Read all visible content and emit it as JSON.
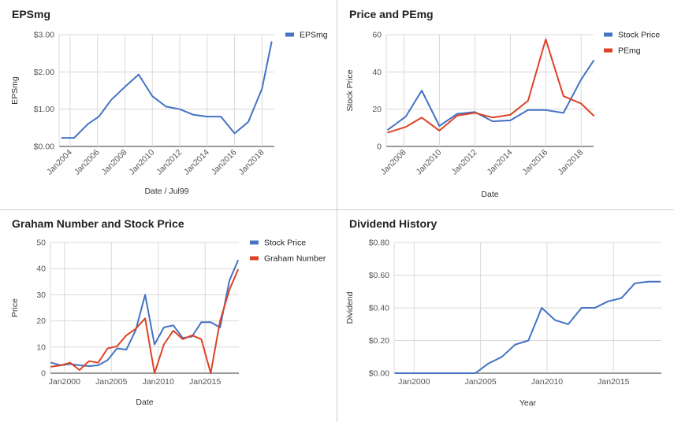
{
  "colors": {
    "blue": "#4472c4",
    "red": "#dc4325"
  },
  "chart_data": [
    {
      "type": "line",
      "title": "EPSmg",
      "xlabel": "Date / Jul99",
      "ylabel": "EPSmg",
      "ylim": [
        0,
        3
      ],
      "yticks": [
        {
          "value": 0,
          "label": "$0.00"
        },
        {
          "value": 1,
          "label": "$1.00"
        },
        {
          "value": 2,
          "label": "$2.00"
        },
        {
          "value": 3,
          "label": "$3.00"
        }
      ],
      "xlim": [
        2003.2,
        2018.9
      ],
      "xticks": [
        {
          "value": 2004,
          "label": "Jan2004"
        },
        {
          "value": 2006,
          "label": "Jan2006"
        },
        {
          "value": 2008,
          "label": "Jan2008"
        },
        {
          "value": 2010,
          "label": "Jan2010"
        },
        {
          "value": 2012,
          "label": "Jan2012"
        },
        {
          "value": 2014,
          "label": "Jan2014"
        },
        {
          "value": 2016,
          "label": "Jan2016"
        },
        {
          "value": 2018,
          "label": "Jan2018"
        }
      ],
      "rotate_xticks": true,
      "legend": "right",
      "series": [
        {
          "name": "EPSmg",
          "color": "#4472c4",
          "x": [
            2003.4,
            2004.3,
            2005.3,
            2006.1,
            2007.0,
            2008.0,
            2009.0,
            2010.0,
            2011.0,
            2012.0,
            2013.0,
            2014.0,
            2015.0,
            2016.0,
            2017.0,
            2018.0,
            2018.7
          ],
          "y": [
            0.23,
            0.23,
            0.6,
            0.8,
            1.25,
            1.6,
            1.93,
            1.35,
            1.07,
            1.0,
            0.85,
            0.8,
            0.8,
            0.35,
            0.66,
            1.55,
            2.8
          ]
        }
      ]
    },
    {
      "type": "line",
      "title": "Price and PEmg",
      "xlabel": "Date",
      "ylabel": "Stock Price",
      "ylim": [
        0,
        60
      ],
      "yticks": [
        {
          "value": 0,
          "label": "0"
        },
        {
          "value": 20,
          "label": "20"
        },
        {
          "value": 40,
          "label": "40"
        },
        {
          "value": 60,
          "label": "60"
        }
      ],
      "xlim": [
        2007.0,
        2018.7
      ],
      "xticks": [
        {
          "value": 2008,
          "label": "Jan2008"
        },
        {
          "value": 2010,
          "label": "Jan2010"
        },
        {
          "value": 2012,
          "label": "Jan2012"
        },
        {
          "value": 2014,
          "label": "Jan2014"
        },
        {
          "value": 2016,
          "label": "Jan2016"
        },
        {
          "value": 2018,
          "label": "Jan2018"
        }
      ],
      "rotate_xticks": true,
      "legend": "right",
      "series": [
        {
          "name": "Stock Price",
          "color": "#4472c4",
          "x": [
            2007.1,
            2008.1,
            2009.0,
            2010.0,
            2011.0,
            2012.0,
            2013.0,
            2014.0,
            2015.0,
            2016.0,
            2017.0,
            2018.0,
            2018.7
          ],
          "y": [
            9,
            16,
            30,
            11,
            17.5,
            18.5,
            13.5,
            14,
            19.5,
            19.5,
            18,
            36,
            46
          ]
        },
        {
          "name": "PEmg",
          "color": "#dc4325",
          "x": [
            2007.1,
            2008.1,
            2009.0,
            2010.0,
            2011.0,
            2012.0,
            2013.0,
            2014.0,
            2015.0,
            2016.0,
            2017.0,
            2018.0,
            2018.7
          ],
          "y": [
            7.5,
            10.5,
            15.5,
            8.5,
            16.5,
            18,
            15.5,
            17,
            24.5,
            57.5,
            27,
            23,
            16.5
          ]
        }
      ]
    },
    {
      "type": "line",
      "title": "Graham Number and Stock Price",
      "xlabel": "Date",
      "ylabel": "Price",
      "ylim": [
        0,
        50
      ],
      "yticks": [
        {
          "value": 0,
          "label": "0"
        },
        {
          "value": 10,
          "label": "10"
        },
        {
          "value": 20,
          "label": "20"
        },
        {
          "value": 30,
          "label": "30"
        },
        {
          "value": 40,
          "label": "40"
        },
        {
          "value": 50,
          "label": "50"
        }
      ],
      "xlim": [
        1998.5,
        2018.6
      ],
      "xticks": [
        {
          "value": 2000,
          "label": "Jan2000"
        },
        {
          "value": 2005,
          "label": "Jan2005"
        },
        {
          "value": 2010,
          "label": "Jan2010"
        },
        {
          "value": 2015,
          "label": "Jan2015"
        }
      ],
      "rotate_xticks": false,
      "legend": "right",
      "series": [
        {
          "name": "Stock Price",
          "color": "#4472c4",
          "x": [
            1998.6,
            1999.6,
            2000.6,
            2001.6,
            2002.6,
            2003.6,
            2004.6,
            2005.6,
            2006.6,
            2007.6,
            2008.6,
            2009.6,
            2010.6,
            2011.6,
            2012.6,
            2013.6,
            2014.6,
            2015.6,
            2016.6,
            2017.6,
            2018.5
          ],
          "y": [
            4,
            3,
            3.5,
            3,
            2.7,
            3,
            5,
            9.5,
            9,
            16.5,
            30,
            11,
            17.5,
            18.3,
            13.5,
            14,
            19.5,
            19.5,
            17.5,
            35.5,
            43
          ]
        },
        {
          "name": "Graham Number",
          "color": "#dc4325",
          "x": [
            1998.6,
            1999.6,
            2000.6,
            2001.6,
            2002.6,
            2003.6,
            2004.6,
            2005.6,
            2006.6,
            2007.6,
            2008.6,
            2009.6,
            2010.6,
            2011.6,
            2012.6,
            2013.6,
            2014.6,
            2015.6,
            2016.6,
            2017.6,
            2018.5
          ],
          "y": [
            2.5,
            3,
            4,
            1.2,
            4.6,
            4,
            9.5,
            10.3,
            14.5,
            17,
            21,
            0,
            11,
            16.3,
            13,
            14.5,
            13,
            0,
            20,
            32,
            39.5
          ]
        }
      ]
    },
    {
      "type": "line",
      "title": "Dividend History",
      "xlabel": "Year",
      "ylabel": "Dividend",
      "ylim": [
        0,
        0.8
      ],
      "yticks": [
        {
          "value": 0,
          "label": "$0.00"
        },
        {
          "value": 0.2,
          "label": "$0.20"
        },
        {
          "value": 0.4,
          "label": "$0.40"
        },
        {
          "value": 0.6,
          "label": "$0.60"
        },
        {
          "value": 0.8,
          "label": "$0.80"
        }
      ],
      "xlim": [
        1998.5,
        2018.6
      ],
      "xticks": [
        {
          "value": 2000,
          "label": "Jan2000"
        },
        {
          "value": 2005,
          "label": "Jan2005"
        },
        {
          "value": 2010,
          "label": "Jan2010"
        },
        {
          "value": 2015,
          "label": "Jan2015"
        }
      ],
      "rotate_xticks": false,
      "legend": "none",
      "series": [
        {
          "color": "#4472c4",
          "x": [
            1998.6,
            1999.6,
            2000.6,
            2001.6,
            2002.6,
            2003.6,
            2004.6,
            2005.6,
            2006.6,
            2007.6,
            2008.6,
            2009.6,
            2010.6,
            2011.6,
            2012.6,
            2013.6,
            2014.6,
            2015.6,
            2016.6,
            2017.6,
            2018.5
          ],
          "y": [
            0,
            0,
            0,
            0,
            0,
            0,
            0,
            0.06,
            0.1,
            0.175,
            0.2,
            0.4,
            0.325,
            0.3,
            0.4,
            0.4,
            0.44,
            0.46,
            0.55,
            0.56,
            0.56
          ]
        }
      ]
    }
  ]
}
